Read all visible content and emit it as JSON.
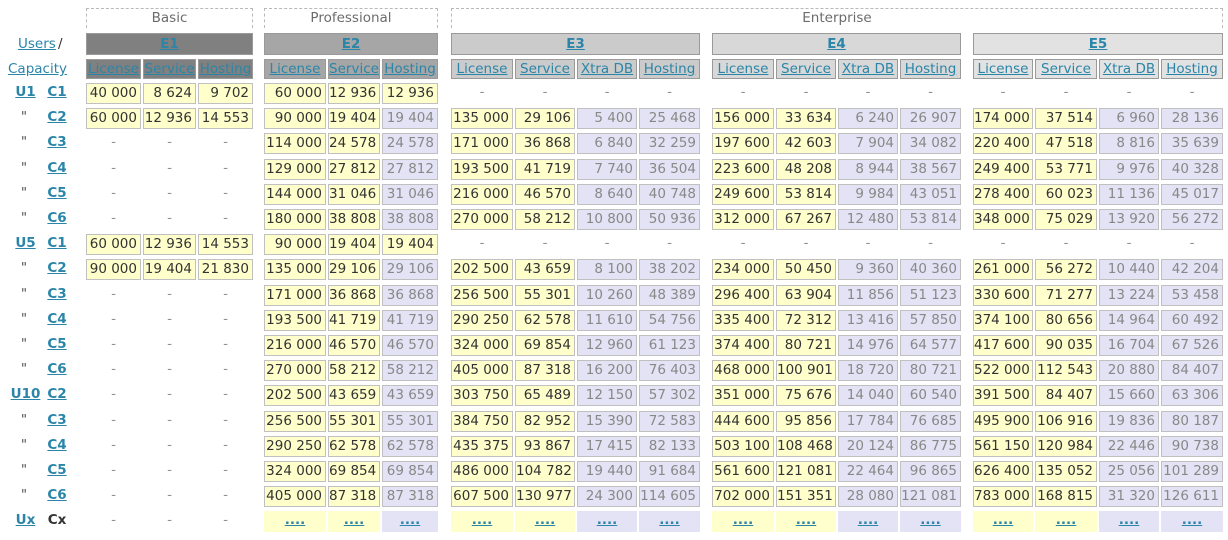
{
  "corner": {
    "users_label": "Users",
    "slash": "/",
    "capacity_label": "Capacity"
  },
  "ditto_mark": "\"",
  "dash": "-",
  "tiers": [
    {
      "name": "Basic"
    },
    {
      "name": "Professional"
    },
    {
      "name": "Enterprise"
    }
  ],
  "editions": [
    {
      "name": "E1",
      "color": "#808080",
      "columns": [
        "License",
        "Service",
        "Hosting"
      ]
    },
    {
      "name": "E2",
      "color": "#a6a6a6",
      "columns": [
        "License",
        "Service",
        "Hosting"
      ]
    },
    {
      "name": "E3",
      "color": "#cbcbcb",
      "columns": [
        "License",
        "Service",
        "Xtra DB",
        "Hosting"
      ]
    },
    {
      "name": "E4",
      "color": "#d8d8d8",
      "columns": [
        "License",
        "Service",
        "Xtra DB",
        "Hosting"
      ]
    },
    {
      "name": "E5",
      "color": "#e2e2e2",
      "columns": [
        "License",
        "Service",
        "Xtra DB",
        "Hosting"
      ]
    }
  ],
  "rows": [
    {
      "user": "U1",
      "cap": "C1",
      "e1": [
        "40 000",
        "8 624",
        "9 702"
      ],
      "e1_style": "y",
      "e2": [
        "60 000",
        "12 936",
        "12 936"
      ],
      "e2_style": "y",
      "e3": null,
      "e4": null,
      "e5": null
    },
    {
      "user": "\"",
      "cap": "C2",
      "e1": [
        "60 000",
        "12 936",
        "14 553"
      ],
      "e1_style": "y",
      "e2": [
        "90 000",
        "19 404",
        "19 404"
      ],
      "e2_style": "p",
      "e3": [
        "135 000",
        "29 106",
        "5 400",
        "25 468"
      ],
      "e4": [
        "156 000",
        "33 634",
        "6 240",
        "26 907"
      ],
      "e5": [
        "174 000",
        "37 514",
        "6 960",
        "28 136"
      ]
    },
    {
      "user": "\"",
      "cap": "C3",
      "e1": null,
      "e2": [
        "114 000",
        "24 578",
        "24 578"
      ],
      "e2_style": "p",
      "e3": [
        "171 000",
        "36 868",
        "6 840",
        "32 259"
      ],
      "e4": [
        "197 600",
        "42 603",
        "7 904",
        "34 082"
      ],
      "e5": [
        "220 400",
        "47 518",
        "8 816",
        "35 639"
      ]
    },
    {
      "user": "\"",
      "cap": "C4",
      "e1": null,
      "e2": [
        "129 000",
        "27 812",
        "27 812"
      ],
      "e2_style": "p",
      "e3": [
        "193 500",
        "41 719",
        "7 740",
        "36 504"
      ],
      "e4": [
        "223 600",
        "48 208",
        "8 944",
        "38 567"
      ],
      "e5": [
        "249 400",
        "53 771",
        "9 976",
        "40 328"
      ]
    },
    {
      "user": "\"",
      "cap": "C5",
      "e1": null,
      "e2": [
        "144 000",
        "31 046",
        "31 046"
      ],
      "e2_style": "p",
      "e3": [
        "216 000",
        "46 570",
        "8 640",
        "40 748"
      ],
      "e4": [
        "249 600",
        "53 814",
        "9 984",
        "43 051"
      ],
      "e5": [
        "278 400",
        "60 023",
        "11 136",
        "45 017"
      ]
    },
    {
      "user": "\"",
      "cap": "C6",
      "e1": null,
      "e2": [
        "180 000",
        "38 808",
        "38 808"
      ],
      "e2_style": "p",
      "e3": [
        "270 000",
        "58 212",
        "10 800",
        "50 936"
      ],
      "e4": [
        "312 000",
        "67 267",
        "12 480",
        "53 814"
      ],
      "e5": [
        "348 000",
        "75 029",
        "13 920",
        "56 272"
      ]
    },
    {
      "user": "U5",
      "cap": "C1",
      "e1": [
        "60 000",
        "12 936",
        "14 553"
      ],
      "e1_style": "y",
      "e2": [
        "90 000",
        "19 404",
        "19 404"
      ],
      "e2_style": "y",
      "e3": null,
      "e4": null,
      "e5": null
    },
    {
      "user": "\"",
      "cap": "C2",
      "e1": [
        "90 000",
        "19 404",
        "21 830"
      ],
      "e1_style": "y",
      "e2": [
        "135 000",
        "29 106",
        "29 106"
      ],
      "e2_style": "p",
      "e3": [
        "202 500",
        "43 659",
        "8 100",
        "38 202"
      ],
      "e4": [
        "234 000",
        "50 450",
        "9 360",
        "40 360"
      ],
      "e5": [
        "261 000",
        "56 272",
        "10 440",
        "42 204"
      ]
    },
    {
      "user": "\"",
      "cap": "C3",
      "e1": null,
      "e2": [
        "171 000",
        "36 868",
        "36 868"
      ],
      "e2_style": "p",
      "e3": [
        "256 500",
        "55 301",
        "10 260",
        "48 389"
      ],
      "e4": [
        "296 400",
        "63 904",
        "11 856",
        "51 123"
      ],
      "e5": [
        "330 600",
        "71 277",
        "13 224",
        "53 458"
      ]
    },
    {
      "user": "\"",
      "cap": "C4",
      "e1": null,
      "e2": [
        "193 500",
        "41 719",
        "41 719"
      ],
      "e2_style": "p",
      "e3": [
        "290 250",
        "62 578",
        "11 610",
        "54 756"
      ],
      "e4": [
        "335 400",
        "72 312",
        "13 416",
        "57 850"
      ],
      "e5": [
        "374 100",
        "80 656",
        "14 964",
        "60 492"
      ]
    },
    {
      "user": "\"",
      "cap": "C5",
      "e1": null,
      "e2": [
        "216 000",
        "46 570",
        "46 570"
      ],
      "e2_style": "p",
      "e3": [
        "324 000",
        "69 854",
        "12 960",
        "61 123"
      ],
      "e4": [
        "374 400",
        "80 721",
        "14 976",
        "64 577"
      ],
      "e5": [
        "417 600",
        "90 035",
        "16 704",
        "67 526"
      ]
    },
    {
      "user": "\"",
      "cap": "C6",
      "e1": null,
      "e2": [
        "270 000",
        "58 212",
        "58 212"
      ],
      "e2_style": "p",
      "e3": [
        "405 000",
        "87 318",
        "16 200",
        "76 403"
      ],
      "e4": [
        "468 000",
        "100 901",
        "18 720",
        "80 721"
      ],
      "e5": [
        "522 000",
        "112 543",
        "20 880",
        "84 407"
      ]
    },
    {
      "user": "U10",
      "cap": "C2",
      "e1": null,
      "e2": [
        "202 500",
        "43 659",
        "43 659"
      ],
      "e2_style": "p",
      "e3": [
        "303 750",
        "65 489",
        "12 150",
        "57 302"
      ],
      "e4": [
        "351 000",
        "75 676",
        "14 040",
        "60 540"
      ],
      "e5": [
        "391 500",
        "84 407",
        "15 660",
        "63 306"
      ]
    },
    {
      "user": "\"",
      "cap": "C3",
      "e1": null,
      "e2": [
        "256 500",
        "55 301",
        "55 301"
      ],
      "e2_style": "p",
      "e3": [
        "384 750",
        "82 952",
        "15 390",
        "72 583"
      ],
      "e4": [
        "444 600",
        "95 856",
        "17 784",
        "76 685"
      ],
      "e5": [
        "495 900",
        "106 916",
        "19 836",
        "80 187"
      ]
    },
    {
      "user": "\"",
      "cap": "C4",
      "e1": null,
      "e2": [
        "290 250",
        "62 578",
        "62 578"
      ],
      "e2_style": "p",
      "e3": [
        "435 375",
        "93 867",
        "17 415",
        "82 133"
      ],
      "e4": [
        "503 100",
        "108 468",
        "20 124",
        "86 775"
      ],
      "e5": [
        "561 150",
        "120 984",
        "22 446",
        "90 738"
      ]
    },
    {
      "user": "\"",
      "cap": "C5",
      "e1": null,
      "e2": [
        "324 000",
        "69 854",
        "69 854"
      ],
      "e2_style": "p",
      "e3": [
        "486 000",
        "104 782",
        "19 440",
        "91 684"
      ],
      "e4": [
        "561 600",
        "121 081",
        "22 464",
        "96 865"
      ],
      "e5": [
        "626 400",
        "135 052",
        "25 056",
        "101 289"
      ]
    },
    {
      "user": "\"",
      "cap": "C6",
      "e1": null,
      "e2": [
        "405 000",
        "87 318",
        "87 318"
      ],
      "e2_style": "p",
      "e3": [
        "607 500",
        "130 977",
        "24 300",
        "114 605"
      ],
      "e4": [
        "702 000",
        "151 351",
        "28 080",
        "121 081"
      ],
      "e5": [
        "783 000",
        "168 815",
        "31 320",
        "126 611"
      ]
    }
  ],
  "last_row": {
    "user": "Ux",
    "cap": "Cx",
    "more_label": "...."
  }
}
